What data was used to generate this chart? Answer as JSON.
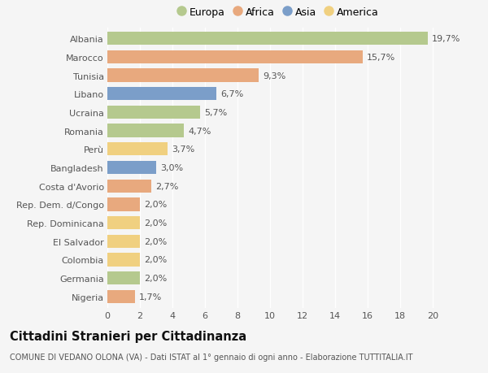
{
  "categories": [
    "Albania",
    "Marocco",
    "Tunisia",
    "Libano",
    "Ucraina",
    "Romania",
    "Perù",
    "Bangladesh",
    "Costa d'Avorio",
    "Rep. Dem. d/Congo",
    "Rep. Dominicana",
    "El Salvador",
    "Colombia",
    "Germania",
    "Nigeria"
  ],
  "values": [
    19.7,
    15.7,
    9.3,
    6.7,
    5.7,
    4.7,
    3.7,
    3.0,
    2.7,
    2.0,
    2.0,
    2.0,
    2.0,
    2.0,
    1.7
  ],
  "labels": [
    "19,7%",
    "15,7%",
    "9,3%",
    "6,7%",
    "5,7%",
    "4,7%",
    "3,7%",
    "3,0%",
    "2,7%",
    "2,0%",
    "2,0%",
    "2,0%",
    "2,0%",
    "2,0%",
    "1,7%"
  ],
  "continents": [
    "Europa",
    "Africa",
    "Africa",
    "Asia",
    "Europa",
    "Europa",
    "America",
    "Asia",
    "Africa",
    "Africa",
    "America",
    "America",
    "America",
    "Europa",
    "Africa"
  ],
  "colors": {
    "Europa": "#b5c98e",
    "Africa": "#e8a97e",
    "Asia": "#7b9ec9",
    "America": "#f0d080"
  },
  "legend_order": [
    "Europa",
    "Africa",
    "Asia",
    "America"
  ],
  "xlim": [
    0,
    21
  ],
  "xticks": [
    0,
    2,
    4,
    6,
    8,
    10,
    12,
    14,
    16,
    18,
    20
  ],
  "title": "Cittadini Stranieri per Cittadinanza",
  "subtitle": "COMUNE DI VEDANO OLONA (VA) - Dati ISTAT al 1° gennaio di ogni anno - Elaborazione TUTTITALIA.IT",
  "bg_color": "#f5f5f5",
  "grid_color": "#ffffff",
  "bar_height": 0.72,
  "label_fontsize": 8.0,
  "tick_fontsize": 8.0,
  "title_fontsize": 10.5,
  "subtitle_fontsize": 7.0
}
